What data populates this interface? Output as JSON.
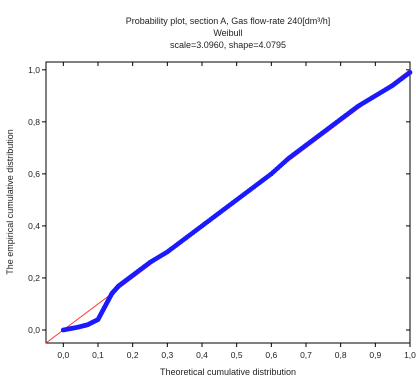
{
  "chart_data": {
    "type": "scatter",
    "title": "Probability plot, section A,  Gas flow-rate 240[dm³/h]",
    "subtitle": "Weibull",
    "parameters": "scale=3.0960, shape=4.0795",
    "xlabel": "Theoretical cumulative distribution",
    "ylabel": "The empirical cumulative distribution",
    "xlim": [
      -0.05,
      1.0
    ],
    "ylim": [
      -0.05,
      1.03
    ],
    "x_ticks": [
      "0,0",
      "0,1",
      "0,2",
      "0,3",
      "0,4",
      "0,5",
      "0,6",
      "0,7",
      "0,8",
      "0,9",
      "1,0"
    ],
    "y_ticks": [
      "0,0",
      "0,2",
      "0,4",
      "0,6",
      "0,8",
      "1,0"
    ],
    "x_tick_values": [
      0,
      0.1,
      0.2,
      0.3,
      0.4,
      0.5,
      0.6,
      0.7,
      0.8,
      0.9,
      1.0
    ],
    "y_tick_values": [
      0,
      0.2,
      0.4,
      0.6,
      0.8,
      1.0
    ],
    "grid": false,
    "reference_line": {
      "color": "#ff3333",
      "from": [
        -0.05,
        -0.05
      ],
      "to": [
        1.0,
        1.0
      ]
    },
    "series": [
      {
        "color": "#1a1aff",
        "curve": [
          [
            0.0,
            0.0
          ],
          [
            0.04,
            0.01
          ],
          [
            0.07,
            0.02
          ],
          [
            0.1,
            0.04
          ],
          [
            0.12,
            0.09
          ],
          [
            0.14,
            0.14
          ],
          [
            0.16,
            0.17
          ],
          [
            0.2,
            0.21
          ],
          [
            0.25,
            0.26
          ],
          [
            0.3,
            0.3
          ],
          [
            0.35,
            0.35
          ],
          [
            0.4,
            0.4
          ],
          [
            0.45,
            0.45
          ],
          [
            0.5,
            0.5
          ],
          [
            0.55,
            0.55
          ],
          [
            0.6,
            0.6
          ],
          [
            0.65,
            0.66
          ],
          [
            0.7,
            0.71
          ],
          [
            0.75,
            0.76
          ],
          [
            0.8,
            0.81
          ],
          [
            0.85,
            0.86
          ],
          [
            0.9,
            0.9
          ],
          [
            0.95,
            0.94
          ],
          [
            1.0,
            0.99
          ]
        ]
      }
    ]
  }
}
